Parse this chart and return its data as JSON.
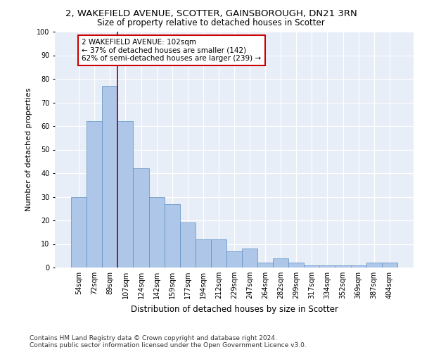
{
  "title_line1": "2, WAKEFIELD AVENUE, SCOTTER, GAINSBOROUGH, DN21 3RN",
  "title_line2": "Size of property relative to detached houses in Scotter",
  "xlabel": "Distribution of detached houses by size in Scotter",
  "ylabel": "Number of detached properties",
  "categories": [
    "54sqm",
    "72sqm",
    "89sqm",
    "107sqm",
    "124sqm",
    "142sqm",
    "159sqm",
    "177sqm",
    "194sqm",
    "212sqm",
    "229sqm",
    "247sqm",
    "264sqm",
    "282sqm",
    "299sqm",
    "317sqm",
    "334sqm",
    "352sqm",
    "369sqm",
    "387sqm",
    "404sqm"
  ],
  "values": [
    30,
    62,
    77,
    62,
    42,
    30,
    27,
    19,
    12,
    12,
    7,
    8,
    2,
    4,
    2,
    1,
    1,
    1,
    1,
    2,
    2
  ],
  "bar_color": "#aec6e8",
  "bar_edge_color": "#5a8fc2",
  "vline_x": 2.5,
  "vline_color": "#990000",
  "annotation_text": "2 WAKEFIELD AVENUE: 102sqm\n← 37% of detached houses are smaller (142)\n62% of semi-detached houses are larger (239) →",
  "annotation_box_color": "#ffffff",
  "annotation_box_edge": "#cc0000",
  "ylim": [
    0,
    100
  ],
  "yticks": [
    0,
    10,
    20,
    30,
    40,
    50,
    60,
    70,
    80,
    90,
    100
  ],
  "footer": "Contains HM Land Registry data © Crown copyright and database right 2024.\nContains public sector information licensed under the Open Government Licence v3.0.",
  "bg_color": "#e8eef7",
  "fig_bg_color": "#ffffff",
  "title_fontsize": 9.5,
  "subtitle_fontsize": 8.5,
  "ylabel_fontsize": 8,
  "xlabel_fontsize": 8.5,
  "tick_fontsize": 7,
  "annotation_fontsize": 7.5,
  "footer_fontsize": 6.5
}
